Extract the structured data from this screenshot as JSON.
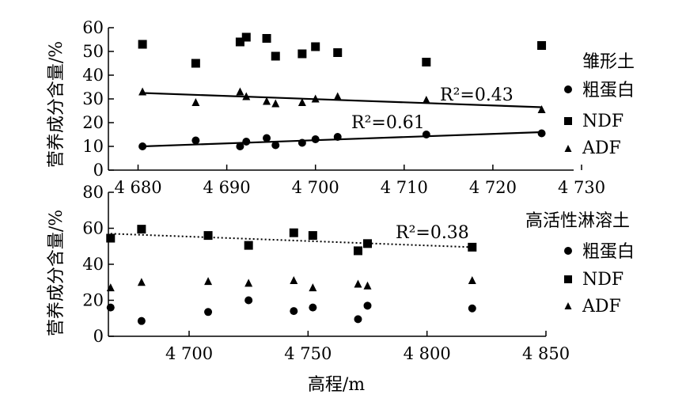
{
  "chart_data": [
    {
      "type": "scatter",
      "panel": "top",
      "ylabel": "营养成分含量/%",
      "xlabel": "",
      "xlim": [
        4673,
        4730
      ],
      "ylim": [
        0,
        60
      ],
      "x_ticks": [
        4680,
        4690,
        4700,
        4710,
        4720,
        4730
      ],
      "x_tick_labels": [
        "4 680",
        "4 690",
        "4 700",
        "4 710",
        "4 720",
        "4 730"
      ],
      "y_ticks": [
        0,
        10,
        20,
        30,
        40,
        50,
        60
      ],
      "y_tick_labels": [
        "0",
        "10",
        "20",
        "30",
        "40",
        "50",
        "60"
      ],
      "legend_title": "雏形土",
      "legend_placement": "right",
      "series": [
        {
          "name": "粗蛋白",
          "marker": "circle",
          "x": [
            4680.5,
            4686.5,
            4691.5,
            4692.2,
            4694.5,
            4695.5,
            4698.5,
            4700,
            4702.5,
            4712.5,
            4725.5
          ],
          "y": [
            10,
            12.5,
            10,
            12,
            13.5,
            10.5,
            11.5,
            13,
            14,
            15,
            15.5
          ],
          "trend": [
            [
              4680.5,
              10
            ],
            [
              4725.5,
              16
            ]
          ],
          "trend_style": "solid",
          "r2_label": "R²=0.61"
        },
        {
          "name": "NDF",
          "marker": "square",
          "x": [
            4680.5,
            4686.5,
            4691.5,
            4692.2,
            4694.5,
            4695.5,
            4698.5,
            4700,
            4702.5,
            4712.5,
            4725.5
          ],
          "y": [
            53,
            45,
            54,
            56,
            55.5,
            48,
            49,
            52,
            49.5,
            45.5,
            52.5
          ]
        },
        {
          "name": "ADF",
          "marker": "triangle",
          "x": [
            4680.5,
            4686.5,
            4691.5,
            4692.2,
            4694.5,
            4695.5,
            4698.5,
            4700,
            4702.5,
            4712.5,
            4725.5
          ],
          "y": [
            33,
            28.5,
            33,
            31,
            29,
            28,
            28.5,
            30,
            31,
            29.5,
            25.5
          ],
          "trend": [
            [
              4680.5,
              32.5
            ],
            [
              4725.5,
              26.5
            ]
          ],
          "trend_style": "solid",
          "r2_label": "R²=0.43"
        }
      ]
    },
    {
      "type": "scatter",
      "panel": "bottom",
      "ylabel": "营养成分含量/%",
      "xlabel": "高程/m",
      "xlim": [
        4663,
        4850
      ],
      "ylim": [
        0,
        80
      ],
      "x_ticks": [
        4700,
        4750,
        4800,
        4850
      ],
      "x_tick_labels": [
        "4 700",
        "4 750",
        "4 800",
        "4 850"
      ],
      "y_ticks": [
        0,
        20,
        40,
        60,
        80
      ],
      "y_tick_labels": [
        "0",
        "20",
        "40",
        "60",
        "80"
      ],
      "legend_title": "高活性淋溶土",
      "legend_placement": "right",
      "series": [
        {
          "name": "粗蛋白",
          "marker": "circle",
          "x": [
            4667,
            4680,
            4708,
            4725,
            4744,
            4752,
            4771,
            4775,
            4819
          ],
          "y": [
            16,
            8.5,
            13.5,
            20,
            14,
            16,
            9.5,
            17,
            15.5
          ]
        },
        {
          "name": "NDF",
          "marker": "square",
          "x": [
            4667,
            4680,
            4708,
            4725,
            4744,
            4752,
            4771,
            4775,
            4819
          ],
          "y": [
            54.5,
            59.5,
            56,
            50.5,
            57.5,
            56,
            47.5,
            51.5,
            49.5
          ],
          "trend": [
            [
              4667,
              57
            ],
            [
              4819,
              49.5
            ]
          ],
          "trend_style": "dotted",
          "r2_label": "R²=0.38"
        },
        {
          "name": "ADF",
          "marker": "triangle",
          "x": [
            4667,
            4680,
            4708,
            4725,
            4744,
            4752,
            4771,
            4775,
            4819
          ],
          "y": [
            27,
            30,
            30.5,
            29.5,
            31,
            27,
            29,
            28,
            31
          ]
        }
      ]
    }
  ]
}
